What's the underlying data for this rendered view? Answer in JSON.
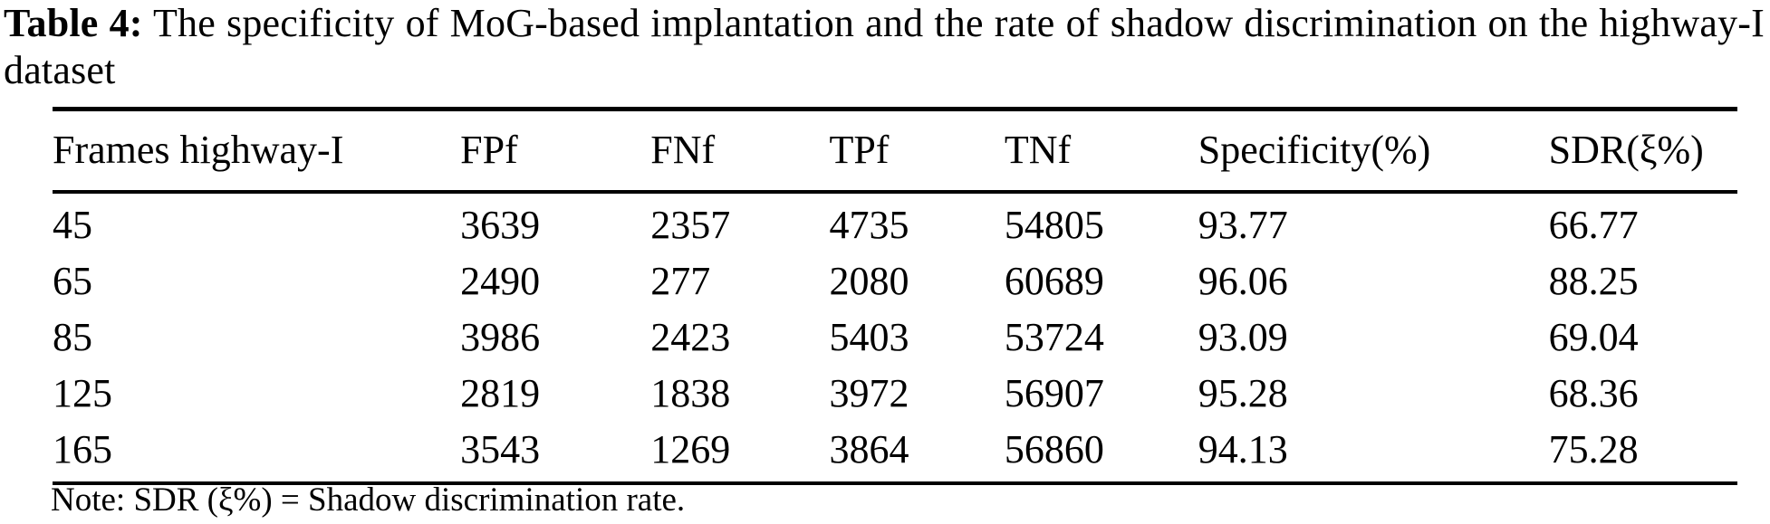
{
  "caption": {
    "label": "Table 4:",
    "text": "The specificity of MoG-based implantation and the rate of shadow discrimination on the highway-I dataset"
  },
  "table": {
    "columns": [
      "Frames highway-I",
      "FPf",
      "FNf",
      "TPf",
      "TNf",
      "Specificity(%)",
      "SDR(ξ%)"
    ],
    "rows": [
      [
        "45",
        "3639",
        "2357",
        "4735",
        "54805",
        "93.77",
        "66.77"
      ],
      [
        "65",
        "2490",
        "277",
        "2080",
        "60689",
        "96.06",
        "88.25"
      ],
      [
        "85",
        "3986",
        "2423",
        "5403",
        "53724",
        "93.09",
        "69.04"
      ],
      [
        "125",
        "2819",
        "1838",
        "3972",
        "56907",
        "95.28",
        "68.36"
      ],
      [
        "165",
        "3543",
        "1269",
        "3864",
        "56860",
        "94.13",
        "75.28"
      ]
    ]
  },
  "note": "Note: SDR (ξ%) = Shadow discrimination rate.",
  "colors": {
    "text": "#000000",
    "background": "#ffffff",
    "rule": "#000000"
  },
  "chart_data": {
    "type": "table",
    "title": "Table 4: The specificity of MoG-based implantation and the rate of shadow discrimination on the highway-I dataset",
    "columns": [
      "Frames highway-I",
      "FPf",
      "FNf",
      "TPf",
      "TNf",
      "Specificity(%)",
      "SDR(ξ%)"
    ],
    "rows": [
      [
        45,
        3639,
        2357,
        4735,
        54805,
        93.77,
        66.77
      ],
      [
        65,
        2490,
        277,
        2080,
        60689,
        96.06,
        88.25
      ],
      [
        85,
        3986,
        2423,
        5403,
        53724,
        93.09,
        69.04
      ],
      [
        125,
        2819,
        1838,
        3972,
        56907,
        95.28,
        68.36
      ],
      [
        165,
        3543,
        1269,
        3864,
        56860,
        94.13,
        75.28
      ]
    ],
    "note": "Note: SDR (ξ%) = Shadow discrimination rate."
  }
}
